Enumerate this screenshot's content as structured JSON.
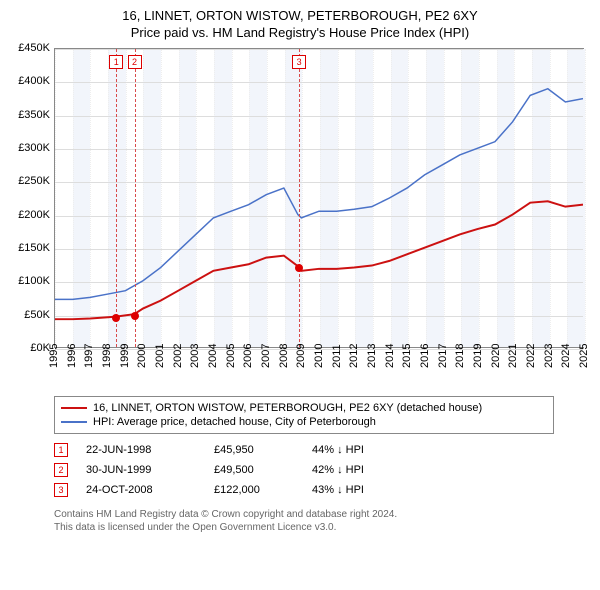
{
  "title": "16, LINNET, ORTON WISTOW, PETERBOROUGH, PE2 6XY",
  "subtitle": "Price paid vs. HM Land Registry's House Price Index (HPI)",
  "chart": {
    "type": "line",
    "xlim": [
      1995,
      2025
    ],
    "ylim": [
      0,
      450000
    ],
    "ytick_step": 50000,
    "yticks": [
      "£0K",
      "£50K",
      "£100K",
      "£150K",
      "£200K",
      "£250K",
      "£300K",
      "£350K",
      "£400K",
      "£450K"
    ],
    "xticks": [
      1995,
      1996,
      1997,
      1998,
      1999,
      2000,
      2001,
      2002,
      2003,
      2004,
      2005,
      2006,
      2007,
      2008,
      2009,
      2010,
      2011,
      2012,
      2013,
      2014,
      2015,
      2016,
      2017,
      2018,
      2019,
      2020,
      2021,
      2022,
      2023,
      2024,
      2025
    ],
    "background_color": "#ffffff",
    "grid_color": "#dddddd",
    "band_color": "#f2f5fb",
    "series": [
      {
        "name": "property",
        "color": "#cc1111",
        "width": 2,
        "label": "16, LINNET, ORTON WISTOW, PETERBOROUGH, PE2 6XY (detached house)",
        "points": [
          [
            1995,
            42000
          ],
          [
            1996,
            42000
          ],
          [
            1997,
            43000
          ],
          [
            1998,
            45000
          ],
          [
            1998.47,
            45950
          ],
          [
            1999.5,
            49500
          ],
          [
            2000,
            58000
          ],
          [
            2001,
            70000
          ],
          [
            2002,
            85000
          ],
          [
            2003,
            100000
          ],
          [
            2004,
            115000
          ],
          [
            2005,
            120000
          ],
          [
            2006,
            125000
          ],
          [
            2007,
            135000
          ],
          [
            2008,
            138000
          ],
          [
            2008.8,
            122000
          ],
          [
            2009,
            115000
          ],
          [
            2010,
            118000
          ],
          [
            2011,
            118000
          ],
          [
            2012,
            120000
          ],
          [
            2013,
            123000
          ],
          [
            2014,
            130000
          ],
          [
            2015,
            140000
          ],
          [
            2016,
            150000
          ],
          [
            2017,
            160000
          ],
          [
            2018,
            170000
          ],
          [
            2019,
            178000
          ],
          [
            2020,
            185000
          ],
          [
            2021,
            200000
          ],
          [
            2022,
            218000
          ],
          [
            2023,
            220000
          ],
          [
            2024,
            212000
          ],
          [
            2025,
            215000
          ]
        ]
      },
      {
        "name": "hpi",
        "color": "#4a72c8",
        "width": 1.5,
        "label": "HPI: Average price, detached house, City of Peterborough",
        "points": [
          [
            1995,
            72000
          ],
          [
            1996,
            72000
          ],
          [
            1997,
            75000
          ],
          [
            1998,
            80000
          ],
          [
            1999,
            85000
          ],
          [
            2000,
            100000
          ],
          [
            2001,
            120000
          ],
          [
            2002,
            145000
          ],
          [
            2003,
            170000
          ],
          [
            2004,
            195000
          ],
          [
            2005,
            205000
          ],
          [
            2006,
            215000
          ],
          [
            2007,
            230000
          ],
          [
            2008,
            240000
          ],
          [
            2008.8,
            200000
          ],
          [
            2009,
            195000
          ],
          [
            2010,
            205000
          ],
          [
            2011,
            205000
          ],
          [
            2012,
            208000
          ],
          [
            2013,
            212000
          ],
          [
            2014,
            225000
          ],
          [
            2015,
            240000
          ],
          [
            2016,
            260000
          ],
          [
            2017,
            275000
          ],
          [
            2018,
            290000
          ],
          [
            2019,
            300000
          ],
          [
            2020,
            310000
          ],
          [
            2021,
            340000
          ],
          [
            2022,
            380000
          ],
          [
            2023,
            390000
          ],
          [
            2024,
            370000
          ],
          [
            2025,
            375000
          ]
        ]
      }
    ],
    "sale_markers": [
      {
        "n": "1",
        "x": 1998.47,
        "y": 45950
      },
      {
        "n": "2",
        "x": 1999.5,
        "y": 49500
      },
      {
        "n": "3",
        "x": 2008.82,
        "y": 122000
      }
    ]
  },
  "sales": [
    {
      "n": "1",
      "date": "22-JUN-1998",
      "price": "£45,950",
      "delta": "44%",
      "dir": "↓",
      "vs": "HPI"
    },
    {
      "n": "2",
      "date": "30-JUN-1999",
      "price": "£49,500",
      "delta": "42%",
      "dir": "↓",
      "vs": "HPI"
    },
    {
      "n": "3",
      "date": "24-OCT-2008",
      "price": "£122,000",
      "delta": "43%",
      "dir": "↓",
      "vs": "HPI"
    }
  ],
  "footer_line1": "Contains HM Land Registry data © Crown copyright and database right 2024.",
  "footer_line2": "This data is licensed under the Open Government Licence v3.0."
}
